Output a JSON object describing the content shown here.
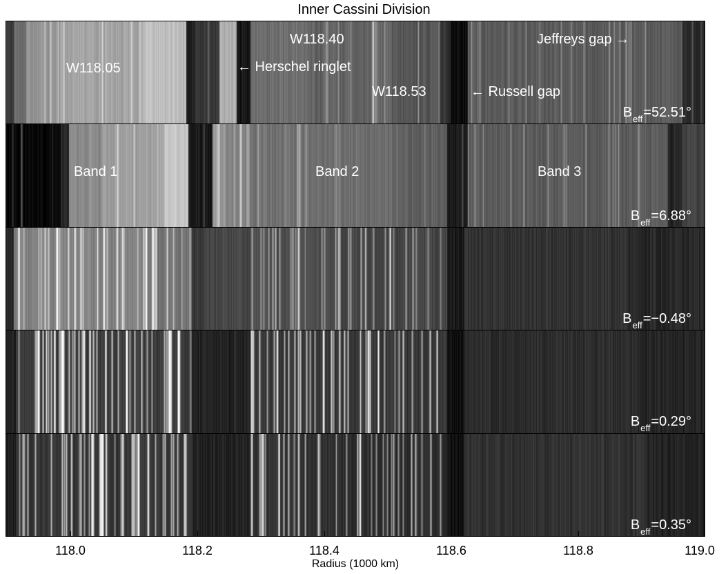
{
  "figure": {
    "title": "Inner Cassini Division",
    "xlabel": "Radius (1000 km)",
    "xticks": [
      "118.0",
      "118.2",
      "118.4",
      "118.6",
      "118.8",
      "119.0"
    ],
    "xrange": [
      117.9,
      119.0
    ]
  },
  "panels": [
    {
      "beff_prefix": "B",
      "beff_sub": "eff",
      "beff_value": "=52.51°",
      "labels": [
        {
          "text": "W118.05"
        },
        {
          "text": "W118.40"
        },
        {
          "text": "← Herschel ringlet"
        },
        {
          "text": "W118.53"
        },
        {
          "text": "← Russell gap"
        },
        {
          "text": "Jeffreys gap →"
        }
      ]
    },
    {
      "beff_prefix": "B",
      "beff_sub": "eff",
      "beff_value": "=6.88°",
      "labels": [
        {
          "text": "Band 1"
        },
        {
          "text": "Band 2"
        },
        {
          "text": "Band 3"
        }
      ]
    },
    {
      "beff_prefix": "B",
      "beff_sub": "eff",
      "beff_value": "=−0.48°",
      "labels": []
    },
    {
      "beff_prefix": "B",
      "beff_sub": "eff",
      "beff_value": "=0.29°",
      "labels": []
    },
    {
      "beff_prefix": "B",
      "beff_sub": "eff",
      "beff_value": "=0.35°",
      "labels": []
    }
  ]
}
